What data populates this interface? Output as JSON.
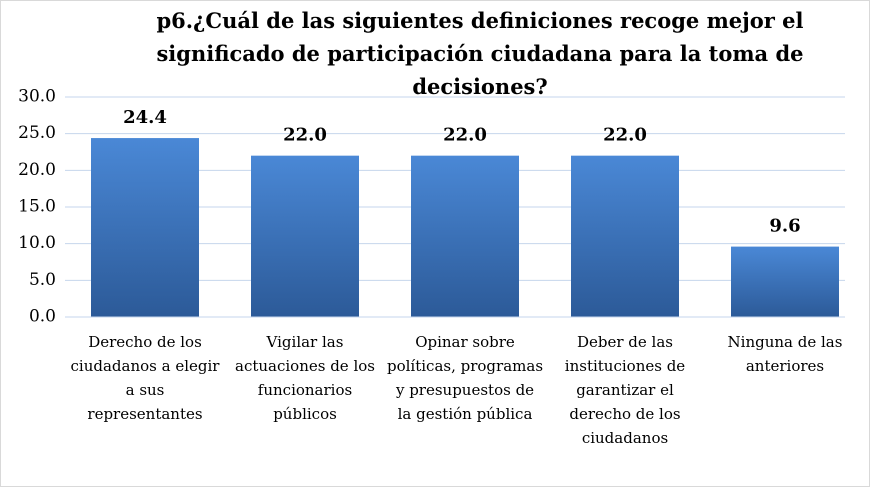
{
  "chart_data": {
    "type": "bar",
    "title": "p6.¿Cuál de las siguientes definiciones recoge mejor el significado de participación ciudadana para la toma de decisiones?",
    "categories": [
      "Derecho de los ciudadanos a elegir a sus representantes",
      "Vigilar las actuaciones de los funcionarios públicos",
      "Opinar sobre políticas, programas y presupuestos de la gestión pública",
      "Deber de las instituciones de garantizar el derecho de los ciudadanos",
      "Ninguna de las anteriores"
    ],
    "values": [
      24.4,
      22.0,
      22.0,
      22.0,
      9.6
    ],
    "value_labels": [
      "24.4",
      "22.0",
      "22.0",
      "22.0",
      "9.6"
    ],
    "color": "#3a70b8",
    "ylim": [
      0,
      30
    ],
    "yticks": [
      {
        "value": 0,
        "label": "0.0"
      },
      {
        "value": 5,
        "label": "5.0"
      },
      {
        "value": 10,
        "label": "10.0"
      },
      {
        "value": 15,
        "label": "15.0"
      },
      {
        "value": 20,
        "label": "20.0"
      },
      {
        "value": 25,
        "label": "25.0"
      },
      {
        "value": 30,
        "label": "30.0"
      }
    ],
    "grid": true
  }
}
